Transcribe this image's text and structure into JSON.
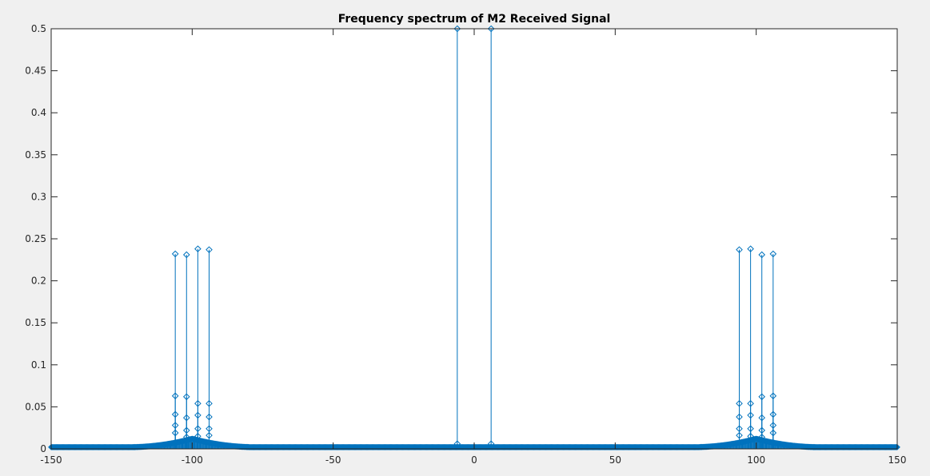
{
  "chart_data": {
    "type": "stem",
    "title": "Frequency spectrum of M2 Received Signal",
    "xlabel": "",
    "ylabel": "",
    "xlim": [
      -150,
      150
    ],
    "ylim": [
      0,
      0.5
    ],
    "xticks": [
      -150,
      -100,
      -50,
      0,
      50,
      100,
      150
    ],
    "yticks": [
      0,
      0.05,
      0.1,
      0.15,
      0.2,
      0.25,
      0.3,
      0.35,
      0.4,
      0.45,
      0.5
    ],
    "grid": false,
    "colors": {
      "series": "#0072bd",
      "axes_bg": "#ffffff",
      "figure_bg": "#f0f0f0",
      "axis": "#262626"
    },
    "series": [
      {
        "peaks": [
          {
            "x": -106,
            "y": 0.232
          },
          {
            "x": -102,
            "y": 0.231
          },
          {
            "x": -98,
            "y": 0.238
          },
          {
            "x": -94,
            "y": 0.237
          },
          {
            "x": -6,
            "y": 0.5
          },
          {
            "x": 6,
            "y": 0.5
          },
          {
            "x": 94,
            "y": 0.237
          },
          {
            "x": 98,
            "y": 0.238
          },
          {
            "x": 102,
            "y": 0.231
          },
          {
            "x": 106,
            "y": 0.232
          }
        ],
        "secondary_points": [
          {
            "x": -106,
            "y": 0.063
          },
          {
            "x": -106,
            "y": 0.041
          },
          {
            "x": -106,
            "y": 0.028
          },
          {
            "x": -106,
            "y": 0.019
          },
          {
            "x": -102,
            "y": 0.062
          },
          {
            "x": -102,
            "y": 0.037
          },
          {
            "x": -102,
            "y": 0.022
          },
          {
            "x": -102,
            "y": 0.014
          },
          {
            "x": -98,
            "y": 0.054
          },
          {
            "x": -98,
            "y": 0.04
          },
          {
            "x": -98,
            "y": 0.024
          },
          {
            "x": -98,
            "y": 0.015
          },
          {
            "x": -94,
            "y": 0.054
          },
          {
            "x": -94,
            "y": 0.038
          },
          {
            "x": -94,
            "y": 0.024
          },
          {
            "x": -94,
            "y": 0.016
          },
          {
            "x": 94,
            "y": 0.054
          },
          {
            "x": 94,
            "y": 0.038
          },
          {
            "x": 94,
            "y": 0.024
          },
          {
            "x": 94,
            "y": 0.016
          },
          {
            "x": 98,
            "y": 0.054
          },
          {
            "x": 98,
            "y": 0.04
          },
          {
            "x": 98,
            "y": 0.024
          },
          {
            "x": 98,
            "y": 0.015
          },
          {
            "x": 102,
            "y": 0.062
          },
          {
            "x": 102,
            "y": 0.037
          },
          {
            "x": 102,
            "y": 0.022
          },
          {
            "x": 102,
            "y": 0.014
          },
          {
            "x": 106,
            "y": 0.063
          },
          {
            "x": 106,
            "y": 0.041
          },
          {
            "x": 106,
            "y": 0.028
          },
          {
            "x": 106,
            "y": 0.019
          },
          {
            "x": -6,
            "y": 0.006
          },
          {
            "x": 6,
            "y": 0.006
          }
        ],
        "noise_floor": {
          "x_range": [
            -150,
            150
          ],
          "x_step": 0.25,
          "y": 0.002
        },
        "sideband_envelope": [
          {
            "x_range": [
              -125,
              -80
            ],
            "center": -100,
            "peak_y": 0.012
          },
          {
            "x_range": [
              80,
              125
            ],
            "center": 100,
            "peak_y": 0.012
          }
        ]
      }
    ]
  }
}
